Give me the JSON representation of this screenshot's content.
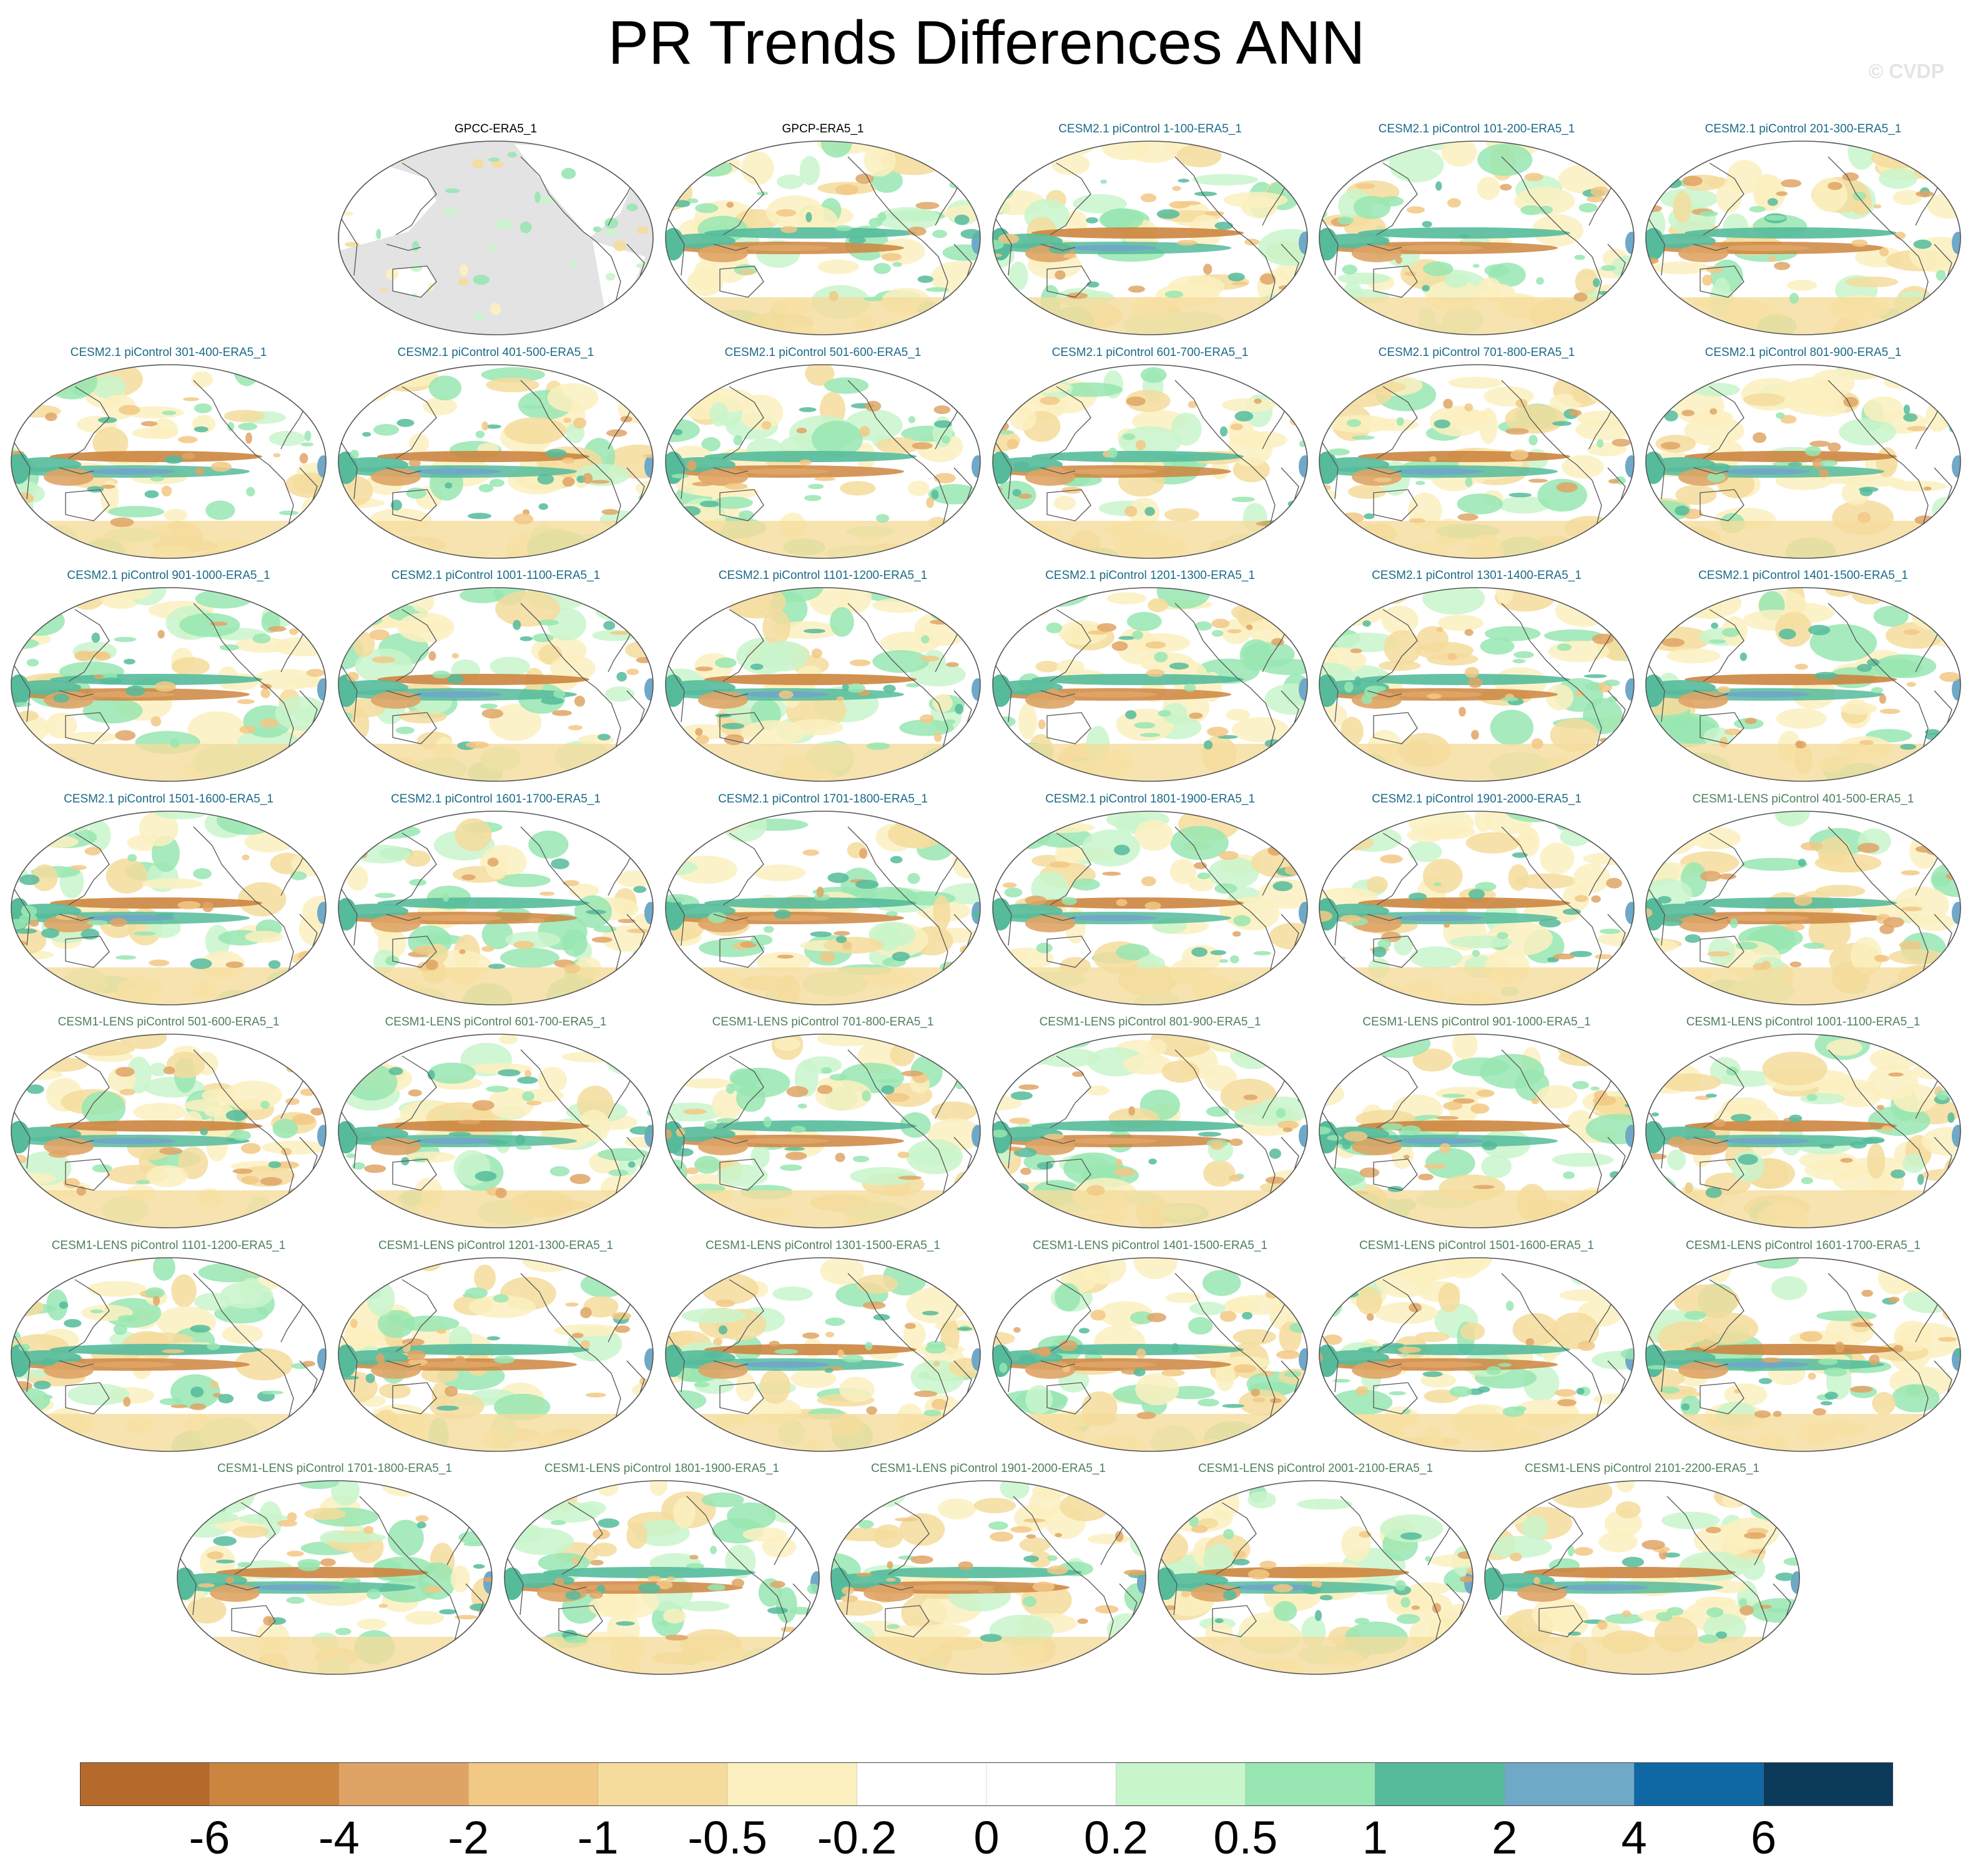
{
  "title": "PR Trends Differences ANN",
  "watermark": "© CVDP",
  "panels": [
    {
      "label": "GPCC-ERA5_1",
      "group": "obs",
      "land_only": true
    },
    {
      "label": "GPCP-ERA5_1",
      "group": "obs"
    },
    {
      "label": "CESM2.1 piControl 1-100-ERA5_1",
      "group": "cesm2"
    },
    {
      "label": "CESM2.1 piControl 101-200-ERA5_1",
      "group": "cesm2"
    },
    {
      "label": "CESM2.1 piControl 201-300-ERA5_1",
      "group": "cesm2"
    },
    {
      "label": "CESM2.1 piControl 301-400-ERA5_1",
      "group": "cesm2"
    },
    {
      "label": "CESM2.1 piControl 401-500-ERA5_1",
      "group": "cesm2"
    },
    {
      "label": "CESM2.1 piControl 501-600-ERA5_1",
      "group": "cesm2"
    },
    {
      "label": "CESM2.1 piControl 601-700-ERA5_1",
      "group": "cesm2"
    },
    {
      "label": "CESM2.1 piControl 701-800-ERA5_1",
      "group": "cesm2"
    },
    {
      "label": "CESM2.1 piControl 801-900-ERA5_1",
      "group": "cesm2"
    },
    {
      "label": "CESM2.1 piControl 901-1000-ERA5_1",
      "group": "cesm2"
    },
    {
      "label": "CESM2.1 piControl 1001-1100-ERA5_1",
      "group": "cesm2"
    },
    {
      "label": "CESM2.1 piControl 1101-1200-ERA5_1",
      "group": "cesm2"
    },
    {
      "label": "CESM2.1 piControl 1201-1300-ERA5_1",
      "group": "cesm2"
    },
    {
      "label": "CESM2.1 piControl 1301-1400-ERA5_1",
      "group": "cesm2"
    },
    {
      "label": "CESM2.1 piControl 1401-1500-ERA5_1",
      "group": "cesm2"
    },
    {
      "label": "CESM2.1 piControl 1501-1600-ERA5_1",
      "group": "cesm2"
    },
    {
      "label": "CESM2.1 piControl 1601-1700-ERA5_1",
      "group": "cesm2"
    },
    {
      "label": "CESM2.1 piControl 1701-1800-ERA5_1",
      "group": "cesm2"
    },
    {
      "label": "CESM2.1 piControl 1801-1900-ERA5_1",
      "group": "cesm2"
    },
    {
      "label": "CESM2.1 piControl 1901-2000-ERA5_1",
      "group": "cesm2"
    },
    {
      "label": "CESM1-LENS piControl 401-500-ERA5_1",
      "group": "cesm1"
    },
    {
      "label": "CESM1-LENS piControl 501-600-ERA5_1",
      "group": "cesm1"
    },
    {
      "label": "CESM1-LENS piControl 601-700-ERA5_1",
      "group": "cesm1"
    },
    {
      "label": "CESM1-LENS piControl 701-800-ERA5_1",
      "group": "cesm1"
    },
    {
      "label": "CESM1-LENS piControl 801-900-ERA5_1",
      "group": "cesm1"
    },
    {
      "label": "CESM1-LENS piControl 901-1000-ERA5_1",
      "group": "cesm1"
    },
    {
      "label": "CESM1-LENS piControl 1001-1100-ERA5_1",
      "group": "cesm1"
    },
    {
      "label": "CESM1-LENS piControl 1101-1200-ERA5_1",
      "group": "cesm1"
    },
    {
      "label": "CESM1-LENS piControl 1201-1300-ERA5_1",
      "group": "cesm1"
    },
    {
      "label": "CESM1-LENS piControl 1301-1500-ERA5_1",
      "group": "cesm1"
    },
    {
      "label": "CESM1-LENS piControl 1401-1500-ERA5_1",
      "group": "cesm1"
    },
    {
      "label": "CESM1-LENS piControl 1501-1600-ERA5_1",
      "group": "cesm1"
    },
    {
      "label": "CESM1-LENS piControl 1601-1700-ERA5_1",
      "group": "cesm1"
    },
    {
      "label": "CESM1-LENS piControl 1701-1800-ERA5_1",
      "group": "cesm1"
    },
    {
      "label": "CESM1-LENS piControl 1801-1900-ERA5_1",
      "group": "cesm1"
    },
    {
      "label": "CESM1-LENS piControl 1901-2000-ERA5_1",
      "group": "cesm1"
    },
    {
      "label": "CESM1-LENS piControl 2001-2100-ERA5_1",
      "group": "cesm1"
    },
    {
      "label": "CESM1-LENS piControl 2101-2200-ERA5_1",
      "group": "cesm1"
    }
  ],
  "group_colors": {
    "obs": "#000000",
    "cesm2": "#1b6a86",
    "cesm1": "#4f7f60"
  },
  "colorbar": {
    "colors": [
      "#b56a2b",
      "#cc853f",
      "#dfa465",
      "#f2c885",
      "#f5dc9c",
      "#fcf0c0",
      "#ffffff",
      "#ffffff",
      "#c9f5cb",
      "#98e6b2",
      "#55bb9b",
      "#70a8c8",
      "#0f68a4",
      "#0b3a5a"
    ],
    "labels": [
      "-6",
      "-4",
      "-2",
      "-1",
      "-0.5",
      "-0.2",
      "0",
      "0.2",
      "0.5",
      "1",
      "2",
      "4",
      "6"
    ]
  }
}
